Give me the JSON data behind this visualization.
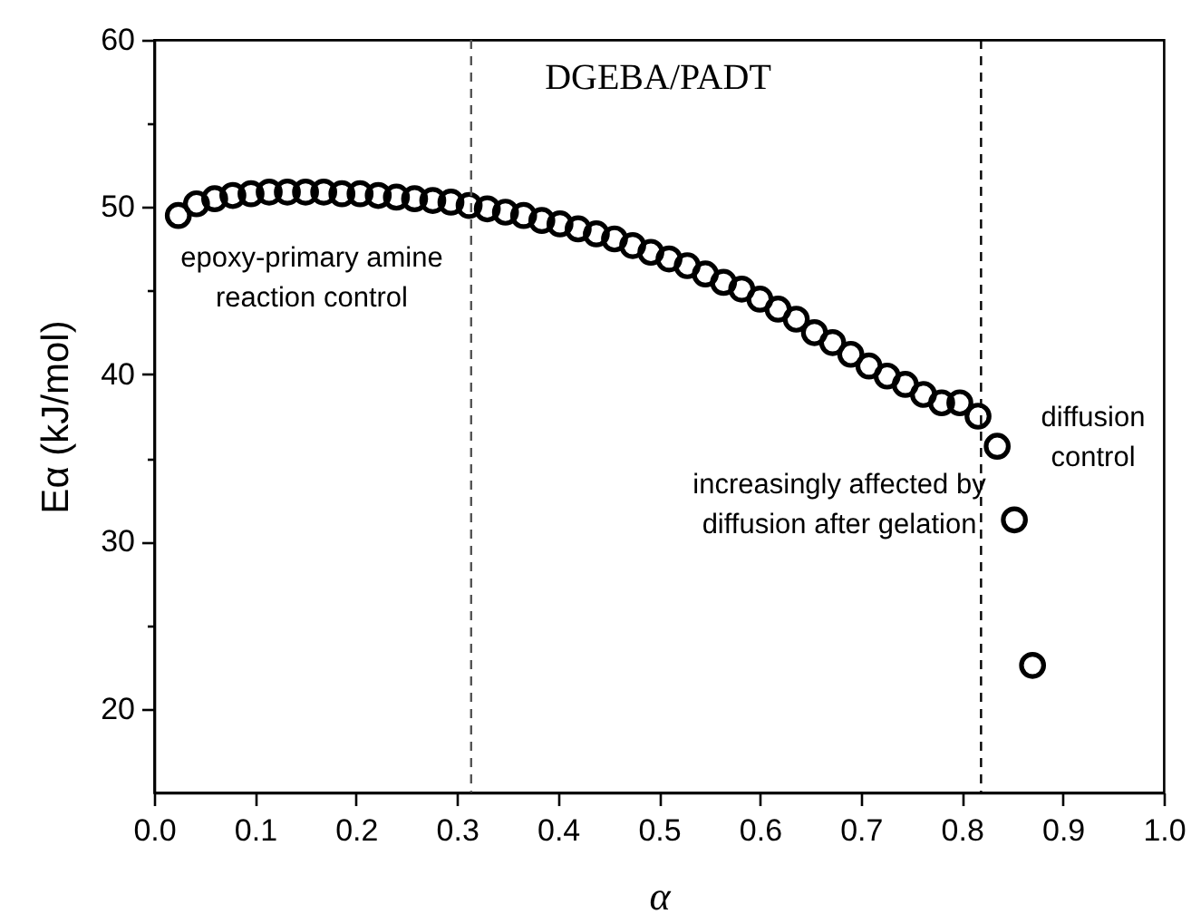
{
  "chart_data": {
    "type": "scatter",
    "xlabel": "α",
    "ylabel": "Eα (kJ/mol)",
    "x": [
      0.024,
      0.042,
      0.06,
      0.078,
      0.096,
      0.114,
      0.132,
      0.15,
      0.168,
      0.186,
      0.204,
      0.222,
      0.24,
      0.258,
      0.276,
      0.294,
      0.312,
      0.33,
      0.348,
      0.366,
      0.384,
      0.402,
      0.42,
      0.438,
      0.456,
      0.474,
      0.492,
      0.51,
      0.528,
      0.546,
      0.564,
      0.582,
      0.6,
      0.618,
      0.636,
      0.654,
      0.672,
      0.69,
      0.708,
      0.726,
      0.744,
      0.762,
      0.78,
      0.798,
      0.816,
      0.835,
      0.852,
      0.87
    ],
    "series": [
      {
        "color": "#000000",
        "values": [
          49.5,
          50.2,
          50.5,
          50.7,
          50.8,
          50.9,
          50.9,
          50.9,
          50.9,
          50.8,
          50.8,
          50.7,
          50.6,
          50.5,
          50.4,
          50.3,
          50.1,
          49.9,
          49.7,
          49.5,
          49.2,
          49.0,
          48.7,
          48.4,
          48.1,
          47.7,
          47.3,
          46.9,
          46.5,
          46.0,
          45.5,
          45.1,
          44.5,
          43.9,
          43.3,
          42.5,
          41.9,
          41.2,
          40.5,
          39.9,
          39.4,
          38.8,
          38.3,
          38.3,
          37.5,
          35.7,
          31.3,
          22.6
        ]
      }
    ],
    "marker": "circle",
    "xlim": [
      0,
      1
    ],
    "ylim": [
      15,
      60
    ],
    "xticks": [
      "0.0",
      0.1,
      0.2,
      0.3,
      0.4,
      0.5,
      0.6,
      0.7,
      0.8,
      0.9,
      "1.0"
    ],
    "yticks": [
      20,
      {
        "value": 25,
        "label": null
      },
      30,
      {
        "value": 35,
        "label": null
      },
      40,
      {
        "value": 45,
        "label": null
      },
      50,
      {
        "value": 55,
        "label": null
      },
      60
    ],
    "ref_lines": [
      {
        "axis": "x",
        "value": 0.314,
        "color": "#555555",
        "line_style": "dashed"
      },
      {
        "axis": "x",
        "value": 0.819,
        "color": "#000000",
        "line_style": "dashed"
      }
    ],
    "annotations": [
      "DGEBA/PADT",
      "epoxy-primary amine\nreaction control",
      "increasingly affected by\ndiffusion after gelation",
      "diffusion\ncontrol"
    ]
  }
}
